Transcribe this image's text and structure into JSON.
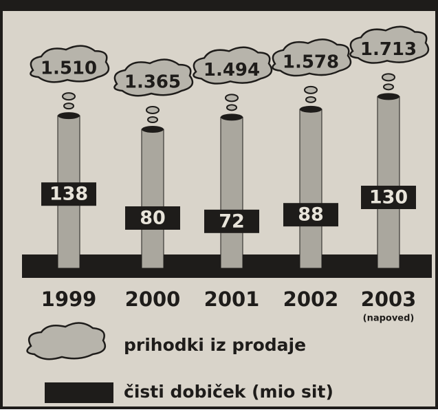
{
  "chart_data": {
    "type": "chimney",
    "categories": [
      "1999",
      "2000",
      "2001",
      "2002",
      "2003"
    ],
    "annotations": [
      {
        "category": 4,
        "text": "(napoved)"
      }
    ],
    "series": [
      {
        "name": "prihodki iz prodaje",
        "color": "#aaa79e",
        "values": [
          1510,
          1365,
          1494,
          1578,
          1713
        ],
        "value_labels": [
          "1.510",
          "1.365",
          "1.494",
          "1.578",
          "1.713"
        ]
      },
      {
        "name": "čisti dobiček (mio sit)",
        "color": "#1e1c1a",
        "values": [
          138,
          80,
          72,
          88,
          130
        ]
      }
    ]
  }
}
